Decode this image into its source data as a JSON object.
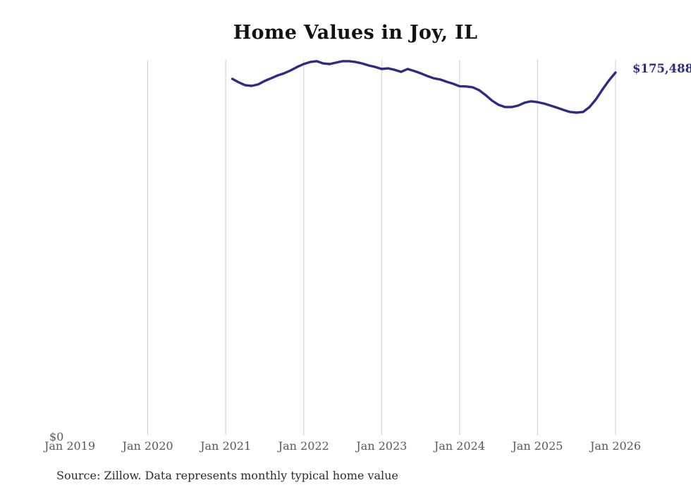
{
  "chart_data": {
    "type": "line",
    "title": "Home Values in Joy, IL",
    "y_zero_label": "$0",
    "end_label": "$175,488",
    "latest_value": 175488,
    "categories": [
      "Jan 2019",
      "Jan 2020",
      "Jan 2021",
      "Jan 2022",
      "Jan 2023",
      "Jan 2024",
      "Jan 2025",
      "Jan 2026"
    ],
    "ylim": [
      0,
      182000
    ],
    "grid": "vertical-gridlines-only",
    "legend": "none",
    "line_color": "#2e2b85",
    "grid_color": "#cccccc",
    "series": [
      {
        "name": "Monthly typical home value",
        "months": [
          "Feb 2021",
          "Mar 2021",
          "Apr 2021",
          "May 2021",
          "Jun 2021",
          "Jul 2021",
          "Aug 2021",
          "Sep 2021",
          "Oct 2021",
          "Nov 2021",
          "Dec 2021",
          "Jan 2022",
          "Feb 2022",
          "Mar 2022",
          "Apr 2022",
          "May 2022",
          "Jun 2022",
          "Jul 2022",
          "Aug 2022",
          "Sep 2022",
          "Oct 2022",
          "Nov 2022",
          "Dec 2022",
          "Jan 2023",
          "Feb 2023",
          "Mar 2023",
          "Apr 2023",
          "May 2023",
          "Jun 2023",
          "Jul 2023",
          "Aug 2023",
          "Sep 2023",
          "Oct 2023",
          "Nov 2023",
          "Dec 2023",
          "Jan 2024",
          "Feb 2024",
          "Mar 2024",
          "Apr 2024",
          "May 2024",
          "Jun 2024",
          "Jul 2024",
          "Aug 2024",
          "Sep 2024",
          "Oct 2024",
          "Nov 2024",
          "Dec 2024",
          "Jan 2025",
          "Feb 2025",
          "Mar 2025",
          "Apr 2025",
          "May 2025",
          "Jun 2025",
          "Jul 2025",
          "Aug 2025",
          "Sep 2025",
          "Oct 2025",
          "Nov 2025",
          "Dec 2025",
          "Jan 2026"
        ],
        "values": [
          172400,
          170700,
          169300,
          169000,
          169700,
          171400,
          172700,
          174100,
          175100,
          176500,
          178200,
          179600,
          180600,
          181000,
          179900,
          179600,
          180300,
          181000,
          181000,
          180600,
          179900,
          178900,
          178200,
          177200,
          177500,
          176800,
          175800,
          177200,
          176200,
          175100,
          173800,
          172700,
          172100,
          171000,
          170000,
          168800,
          168700,
          168300,
          166900,
          164500,
          161800,
          159800,
          158700,
          158700,
          159400,
          160800,
          161500,
          161100,
          160400,
          159400,
          158400,
          157300,
          156300,
          156000,
          156300,
          158700,
          162500,
          167300,
          171700,
          175488
        ]
      }
    ]
  },
  "footer": {
    "source": "Source: Zillow. Data represents monthly typical home value"
  }
}
